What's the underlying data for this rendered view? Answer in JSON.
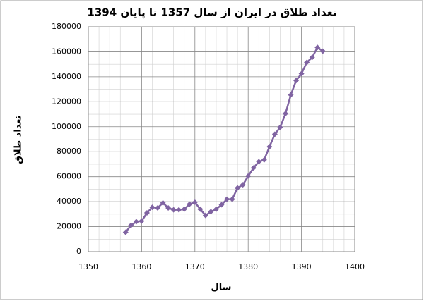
{
  "chart_data": {
    "type": "line",
    "title": "تعداد طلاق در ایران از سال 1357 تا پایان 1394",
    "x_label": "سال",
    "y_label": "تعداد طلاق",
    "x": [
      1357,
      1358,
      1359,
      1360,
      1361,
      1362,
      1363,
      1364,
      1365,
      1366,
      1367,
      1368,
      1369,
      1370,
      1371,
      1372,
      1373,
      1374,
      1375,
      1376,
      1377,
      1378,
      1379,
      1380,
      1381,
      1382,
      1383,
      1384,
      1385,
      1386,
      1387,
      1388,
      1389,
      1390,
      1391,
      1392,
      1393,
      1394
    ],
    "series": [
      {
        "name": "تعداد طلاق",
        "color": "#8064a2",
        "values": [
          15500,
          21000,
          24000,
          24500,
          31000,
          35500,
          35000,
          39000,
          35000,
          33500,
          33500,
          34000,
          38000,
          39500,
          34000,
          29000,
          32000,
          34000,
          37500,
          42000,
          42000,
          51000,
          53500,
          60500,
          67000,
          72000,
          73500,
          84000,
          94000,
          99500,
          110500,
          125500,
          137000,
          142500,
          151500,
          155500,
          163500,
          160500
        ]
      }
    ],
    "xlim": [
      1350,
      1400
    ],
    "xticks": [
      1350,
      1360,
      1370,
      1380,
      1390,
      1400
    ],
    "ylim": [
      0,
      180000
    ],
    "yticks": [
      0,
      20000,
      40000,
      60000,
      80000,
      100000,
      120000,
      140000,
      160000,
      180000
    ],
    "grid": true
  }
}
